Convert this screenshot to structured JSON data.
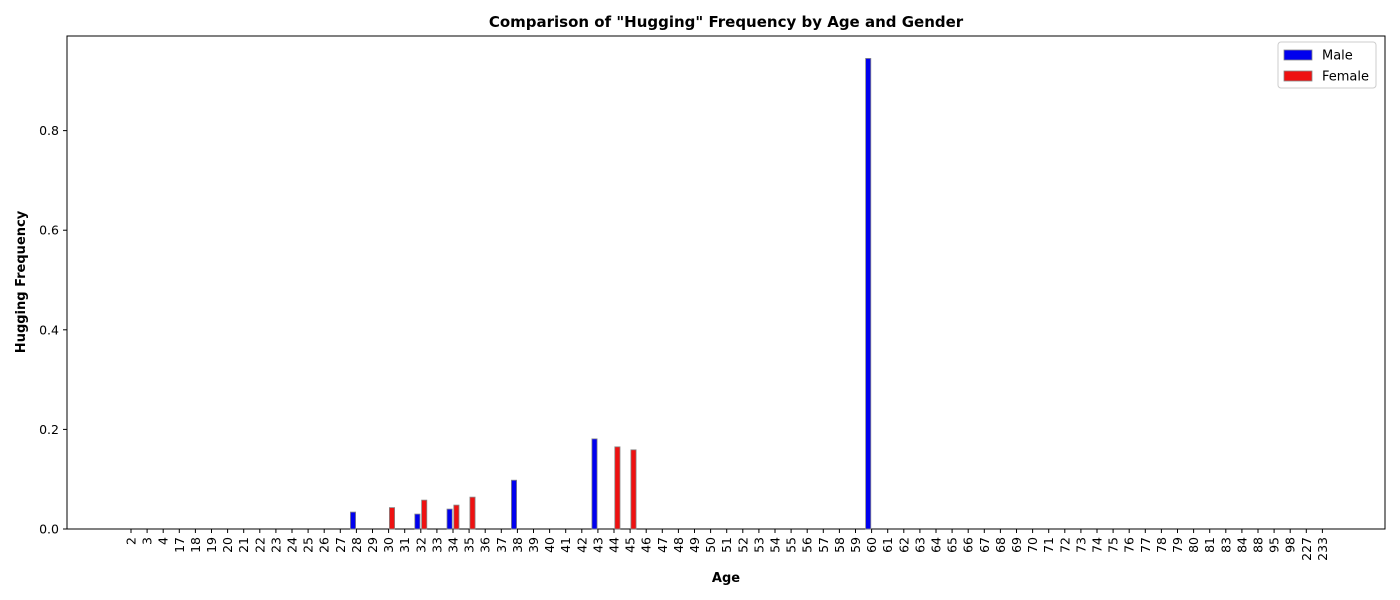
{
  "chart_data": {
    "type": "bar",
    "title": "Comparison of \"Hugging\" Frequency by Age and Gender",
    "xlabel": "Age",
    "ylabel": "Hugging Frequency",
    "categories": [
      "2",
      "3",
      "4",
      "17",
      "18",
      "19",
      "20",
      "21",
      "22",
      "23",
      "24",
      "25",
      "26",
      "27",
      "28",
      "29",
      "30",
      "31",
      "32",
      "33",
      "34",
      "35",
      "36",
      "37",
      "38",
      "39",
      "40",
      "41",
      "42",
      "43",
      "44",
      "45",
      "46",
      "47",
      "48",
      "49",
      "50",
      "51",
      "52",
      "53",
      "54",
      "55",
      "56",
      "57",
      "58",
      "59",
      "60",
      "61",
      "62",
      "63",
      "64",
      "65",
      "66",
      "67",
      "68",
      "69",
      "70",
      "71",
      "72",
      "73",
      "74",
      "75",
      "76",
      "77",
      "78",
      "79",
      "80",
      "81",
      "83",
      "84",
      "88",
      "95",
      "98",
      "227",
      "233"
    ],
    "series": [
      {
        "name": "Male",
        "color": "#0000ee",
        "values": [
          0,
          0,
          0,
          0,
          0,
          0,
          0,
          0,
          0,
          0,
          0,
          0,
          0,
          0,
          0.034,
          0,
          0,
          0,
          0.03,
          0,
          0.04,
          0,
          0,
          0,
          0.098,
          0,
          0,
          0,
          0,
          0.181,
          0,
          0,
          0,
          0,
          0,
          0,
          0,
          0,
          0,
          0,
          0,
          0,
          0,
          0,
          0,
          0,
          0.945,
          0,
          0,
          0,
          0,
          0,
          0,
          0,
          0,
          0,
          0,
          0,
          0,
          0,
          0,
          0,
          0,
          0,
          0,
          0,
          0,
          0,
          0,
          0,
          0,
          0,
          0,
          0,
          0
        ]
      },
      {
        "name": "Female",
        "color": "#ee1111",
        "values": [
          0,
          0,
          0,
          0,
          0,
          0,
          0,
          0,
          0,
          0,
          0,
          0,
          0,
          0,
          0,
          0,
          0.043,
          0,
          0.058,
          0,
          0.048,
          0.064,
          0,
          0,
          0,
          0,
          0,
          0,
          0,
          0,
          0.165,
          0.159,
          0,
          0,
          0,
          0,
          0,
          0,
          0,
          0,
          0,
          0,
          0,
          0,
          0,
          0,
          0,
          0,
          0,
          0,
          0,
          0,
          0,
          0,
          0,
          0,
          0,
          0,
          0,
          0,
          0,
          0,
          0,
          0,
          0,
          0,
          0,
          0,
          0,
          0,
          0,
          0,
          0,
          0,
          0
        ]
      }
    ],
    "ylim": [
      0,
      0.99
    ],
    "yticks": [
      "0.0",
      "0.2",
      "0.4",
      "0.6",
      "0.8"
    ],
    "ytick_values": [
      0,
      0.2,
      0.4,
      0.6,
      0.8
    ],
    "grid": false,
    "legend_position": "top-right"
  }
}
